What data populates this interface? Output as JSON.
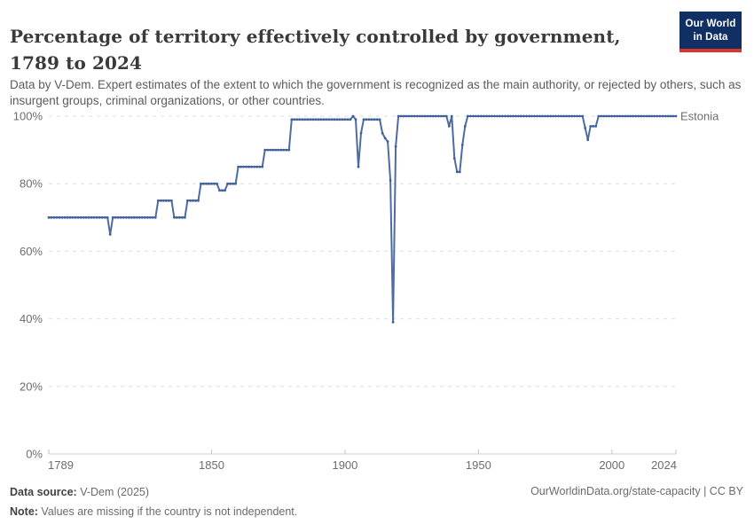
{
  "header": {
    "title": "Percentage of territory effectively controlled by government, 1789 to 2024",
    "subtitle": "Data by V-Dem. Expert estimates of the extent to which the government is recognized as the main authority, or rejected by others, such as insurgent groups, criminal organizations, or other countries.",
    "logo": {
      "line1": "Our World",
      "line2": "in Data",
      "bg_color": "#103065",
      "accent_color": "#dc352b"
    }
  },
  "chart_data": {
    "type": "line",
    "title": "Percentage of territory effectively controlled by government, 1789 to 2024",
    "entity_label": "Estonia",
    "unit": "%",
    "grid": true,
    "legend_position": "end-of-line",
    "x": {
      "label": "Year",
      "min": 1789,
      "max": 2024,
      "ticks": [
        1789,
        1850,
        1900,
        1950,
        2000,
        2024
      ]
    },
    "y": {
      "label": "",
      "min": 0,
      "max": 100,
      "ticks": [
        0,
        20,
        40,
        60,
        80,
        100
      ],
      "tick_suffix": "%"
    },
    "series": [
      {
        "name": "Estonia",
        "color": "#4e6ca3",
        "marker_color": "#40609a",
        "points_encoding": "segments of [start_year, end_year, value_percent]",
        "segments": [
          [
            1789,
            1811,
            70
          ],
          [
            1812,
            1812,
            65
          ],
          [
            1813,
            1829,
            70
          ],
          [
            1830,
            1835,
            75
          ],
          [
            1836,
            1840,
            70
          ],
          [
            1841,
            1845,
            75
          ],
          [
            1846,
            1852,
            80
          ],
          [
            1853,
            1855,
            78
          ],
          [
            1856,
            1859,
            80
          ],
          [
            1860,
            1869,
            85
          ],
          [
            1870,
            1879,
            90
          ],
          [
            1880,
            1902,
            99
          ],
          [
            1903,
            1903,
            100
          ],
          [
            1904,
            1904,
            99
          ],
          [
            1905,
            1905,
            85
          ],
          [
            1906,
            1906,
            95
          ],
          [
            1907,
            1913,
            99
          ],
          [
            1914,
            1914,
            95
          ],
          [
            1915,
            1915,
            93.5
          ],
          [
            1916,
            1916,
            92.5
          ],
          [
            1917,
            1917,
            81
          ],
          [
            1918,
            1918,
            39
          ],
          [
            1919,
            1919,
            91
          ],
          [
            1920,
            1938,
            100
          ],
          [
            1939,
            1939,
            97
          ],
          [
            1940,
            1940,
            100
          ],
          [
            1941,
            1941,
            87.5
          ],
          [
            1942,
            1943,
            83.5
          ],
          [
            1944,
            1944,
            91.5
          ],
          [
            1945,
            1945,
            97
          ],
          [
            1946,
            1989,
            100
          ],
          [
            1990,
            1990,
            96.5
          ],
          [
            1991,
            1991,
            93
          ],
          [
            1992,
            1994,
            97
          ],
          [
            1995,
            2024,
            100
          ]
        ]
      }
    ]
  },
  "footer": {
    "source_label": "Data source:",
    "source_value": " V-Dem (2025)",
    "note_label": "Note:",
    "note_value": " Values are missing if the country is not independent.",
    "link": "OurWorldinData.org/state-capacity | CC BY"
  }
}
